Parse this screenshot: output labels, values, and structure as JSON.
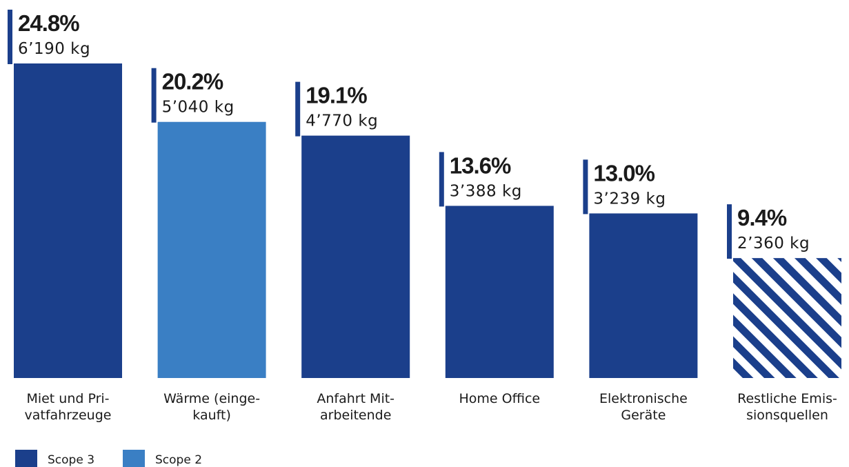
{
  "chart_data": {
    "type": "bar",
    "categories": [
      [
        "Miet und Pri-",
        "vatfahrzeuge"
      ],
      [
        "Wärme (einge-",
        "kauft)"
      ],
      [
        "Anfahrt Mit-",
        "arbeitende"
      ],
      [
        "Home Office"
      ],
      [
        "Elektronische",
        "Geräte"
      ],
      [
        "Restliche Emis-",
        "sionsquellen"
      ]
    ],
    "values": [
      6190,
      5040,
      4770,
      3388,
      3239,
      2360
    ],
    "percent_labels": [
      "24.8%",
      "20.2%",
      "19.1%",
      "13.6%",
      "13.0%",
      "9.4%"
    ],
    "value_labels": [
      "6’190 kg",
      "5’040 kg",
      "4’770 kg",
      "3’388 kg",
      "3’239 kg",
      "2’360 kg"
    ],
    "scope": [
      "Scope 3",
      "Scope 2",
      "Scope 3",
      "Scope 3",
      "Scope 3",
      "other"
    ],
    "ylim": [
      0,
      6190
    ],
    "grid": false,
    "title": "",
    "xlabel": "",
    "ylabel": "",
    "legend": {
      "placement": "bottom-left",
      "items": [
        {
          "label": "Scope 3",
          "color": "#1b3f8b"
        },
        {
          "label": "Scope 2",
          "color": "#3a7fc4"
        }
      ]
    },
    "colors": {
      "scope3": "#1b3f8b",
      "scope2": "#3a7fc4",
      "hatch_stripe": "#1b3f8b",
      "hatch_bg": "#ffffff"
    }
  }
}
